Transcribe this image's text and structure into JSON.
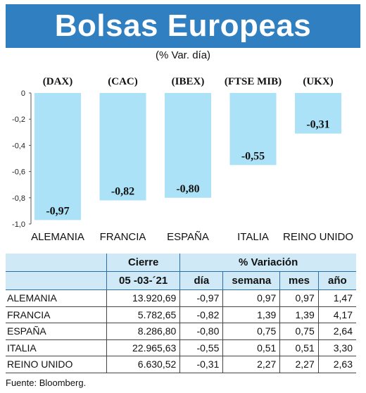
{
  "title": "Bolsas Europeas",
  "subtitle": "(% Var. día)",
  "chart_data": {
    "type": "bar",
    "index_labels": [
      "(DAX)",
      "(CAC)",
      "(IBEX)",
      "(FTSE MIB)",
      "(UKX)"
    ],
    "categories": [
      "ALEMANIA",
      "FRANCIA",
      "ESPAÑA",
      "ITALIA",
      "REINO UNIDO"
    ],
    "values": [
      -0.97,
      -0.82,
      -0.8,
      -0.55,
      -0.31
    ],
    "value_labels": [
      "-0,97",
      "-0,82",
      "-0,80",
      "-0,55",
      "-0,31"
    ],
    "ylim": [
      -1.0,
      0
    ],
    "yticks": [
      0,
      -0.2,
      -0.4,
      -0.6,
      -0.8,
      -1.0
    ],
    "ytick_labels": [
      "0",
      "-0,2",
      "-0,4",
      "-0,6",
      "-0,8",
      "-1,0"
    ],
    "bar_color": "#abe2f7",
    "grid": false
  },
  "table": {
    "header_group_cierre": "Cierre",
    "header_group_variacion": "% Variación",
    "header_date": "05 -03-´21",
    "header_dia": "día",
    "header_semana": "semana",
    "header_mes": "mes",
    "header_ano": "año",
    "rows": [
      {
        "pais": "ALEMANIA",
        "cierre": "13.920,69",
        "dia": "-0,97",
        "semana": "0,97",
        "mes": "0,97",
        "ano": "1,47"
      },
      {
        "pais": "FRANCIA",
        "cierre": "5.782,65",
        "dia": "-0,82",
        "semana": "1,39",
        "mes": "1,39",
        "ano": "4,17"
      },
      {
        "pais": "ESPAÑA",
        "cierre": "8.286,80",
        "dia": "-0,80",
        "semana": "0,75",
        "mes": "0,75",
        "ano": "2,64"
      },
      {
        "pais": "ITALIA",
        "cierre": "22.965,63",
        "dia": "-0,55",
        "semana": "0,51",
        "mes": "0,51",
        "ano": "3,30"
      },
      {
        "pais": "REINO UNIDO",
        "cierre": "6.630,52",
        "dia": "-0,31",
        "semana": "2,27",
        "mes": "2,27",
        "ano": "2,63"
      }
    ],
    "header_color": "#cfe9f6"
  },
  "source": "Fuente: Bloomberg."
}
